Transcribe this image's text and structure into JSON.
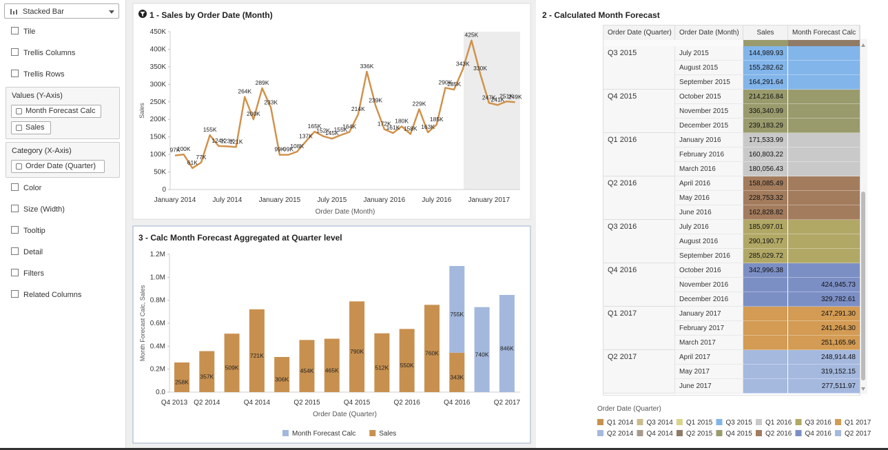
{
  "grammar_panel": {
    "viz_type": "Stacked Bar",
    "items_top": [
      "Tile",
      "Trellis Columns",
      "Trellis Rows"
    ],
    "values_section": {
      "label": "Values (Y-Axis)",
      "pills": [
        "Month Forecast Calc",
        "Sales"
      ]
    },
    "category_section": {
      "label": "Category (X-Axis)",
      "pills": [
        "Order Date (Quarter)"
      ]
    },
    "items_bottom": [
      "Color",
      "Size (Width)",
      "Tooltip",
      "Detail",
      "Filters",
      "Related Columns"
    ]
  },
  "chart_data": [
    {
      "type": "line",
      "title": "1 - Sales by Order Date (Month)",
      "x_label": "Order Date (Month)",
      "y_label": "Sales",
      "color": "#d0924c",
      "categories": [
        "January 2014",
        null,
        null,
        null,
        null,
        null,
        "July 2014",
        null,
        null,
        null,
        null,
        null,
        "January 2015",
        null,
        null,
        null,
        null,
        null,
        "July 2015",
        null,
        null,
        null,
        null,
        null,
        "January 2016",
        null,
        null,
        null,
        null,
        null,
        "July 2016",
        null,
        null,
        null,
        null,
        null,
        "January 2017",
        null,
        null,
        null
      ],
      "values": [
        97000,
        100000,
        61000,
        77000,
        155000,
        124000,
        123000,
        121000,
        264000,
        200000,
        289000,
        233000,
        99000,
        99000,
        108000,
        137000,
        165000,
        152000,
        145000,
        155000,
        164000,
        214000,
        336000,
        239000,
        172000,
        161000,
        180000,
        158000,
        229000,
        163000,
        185000,
        290000,
        285000,
        343000,
        425000,
        330000,
        247000,
        241000,
        251000,
        249000
      ],
      "value_labels": [
        "97K",
        "100K",
        "61K",
        "77K",
        "155K",
        "124K",
        "123K",
        "121K",
        "264K",
        "200K",
        "289K",
        "233K",
        "99K",
        "99K",
        "108K",
        "137K",
        "165K",
        "152K",
        "145K",
        "155K",
        "164K",
        "214K",
        "336K",
        "239K",
        "172K",
        "161K",
        "180K",
        "158K",
        "229K",
        "163K",
        "185K",
        "290K",
        "285K",
        "343K",
        "425K",
        "330K",
        "247K",
        "241K",
        "251K",
        "249K"
      ],
      "ylim": [
        0,
        450000
      ],
      "yticks": [
        0,
        {
          "value": 50000,
          "label": "50K"
        },
        {
          "value": 100000,
          "label": "100K"
        },
        {
          "value": 150000,
          "label": "150K"
        },
        {
          "value": 200000,
          "label": "200K"
        },
        {
          "value": 250000,
          "label": "250K"
        },
        {
          "value": 300000,
          "label": "300K"
        },
        {
          "value": 350000,
          "label": "350K"
        },
        {
          "value": 400000,
          "label": "400K"
        },
        {
          "value": 450000,
          "label": "450K"
        }
      ]
    },
    {
      "type": "stacked_bar",
      "title": "3 - Calc Month Forecast Aggregated at Quarter level",
      "x_label": "Order Date (Quarter)",
      "y_label": "Month Forecast Calc, Sales",
      "legend": "bottom",
      "categories": [
        "Q4 2013",
        "Q2 2014",
        null,
        "Q4 2014",
        null,
        "Q2 2015",
        null,
        "Q4 2015",
        null,
        "Q2 2016",
        null,
        "Q4 2016",
        null,
        "Q2 2017"
      ],
      "series": [
        {
          "name": "Sales",
          "color": "#c8904f",
          "values": [
            258000,
            357000,
            509000,
            721000,
            306000,
            454000,
            465000,
            790000,
            512000,
            550000,
            760000,
            343000,
            null,
            null
          ],
          "value_labels": [
            "258K",
            "357K",
            "509K",
            "721K",
            "306K",
            "454K",
            "465K",
            "790K",
            "512K",
            "550K",
            "760K",
            "343K",
            null,
            null
          ]
        },
        {
          "name": "Month Forecast Calc",
          "color": "#a3b8dc",
          "values": [
            null,
            null,
            null,
            null,
            null,
            null,
            null,
            null,
            null,
            null,
            null,
            755000,
            740000,
            846000
          ],
          "value_labels": [
            null,
            null,
            null,
            null,
            null,
            null,
            null,
            null,
            null,
            null,
            null,
            "755K",
            "740K",
            "846K"
          ]
        }
      ],
      "legend_order": [
        1,
        0
      ],
      "ylim": [
        0,
        1200000
      ],
      "yticks": [
        {
          "value": 0,
          "label": "0.0"
        },
        {
          "value": 200000,
          "label": "0.2M"
        },
        {
          "value": 400000,
          "label": "0.4M"
        },
        {
          "value": 600000,
          "label": "0.6M"
        },
        {
          "value": 800000,
          "label": "0.8M"
        },
        {
          "value": 1000000,
          "label": "1.0M"
        },
        {
          "value": 1200000,
          "label": "1.2M"
        }
      ]
    }
  ],
  "table_view": {
    "title": "2 - Calculated Month Forecast",
    "columns": [
      "Order Date (Quarter)",
      "Order Date (Month)",
      "Sales",
      "Month Forecast Calc"
    ],
    "groups": [
      {
        "quarter": "Q3 2015",
        "color": "#82b5ea",
        "rows": [
          {
            "month": "July 2015",
            "sales": "144,989.93",
            "forecast": null
          },
          {
            "month": "August 2015",
            "sales": "155,282.62",
            "forecast": null
          },
          {
            "month": "September 2015",
            "sales": "164,291.64",
            "forecast": null
          }
        ]
      },
      {
        "quarter": "Q4 2015",
        "color": "#9a9b6d",
        "rows": [
          {
            "month": "October 2015",
            "sales": "214,216.84",
            "forecast": null
          },
          {
            "month": "November 2015",
            "sales": "336,340.99",
            "forecast": null
          },
          {
            "month": "December 2015",
            "sales": "239,183.29",
            "forecast": null
          }
        ]
      },
      {
        "quarter": "Q1 2016",
        "color": "#c9c9c9",
        "rows": [
          {
            "month": "January 2016",
            "sales": "171,533.99",
            "forecast": null
          },
          {
            "month": "February 2016",
            "sales": "160,803.22",
            "forecast": null
          },
          {
            "month": "March 2016",
            "sales": "180,056.43",
            "forecast": null
          }
        ]
      },
      {
        "quarter": "Q2 2016",
        "color": "#a37c5d",
        "rows": [
          {
            "month": "April 2016",
            "sales": "158,085.49",
            "forecast": null
          },
          {
            "month": "May 2016",
            "sales": "228,753.32",
            "forecast": null
          },
          {
            "month": "June 2016",
            "sales": "162,828.82",
            "forecast": null
          }
        ]
      },
      {
        "quarter": "Q3 2016",
        "color": "#b1a866",
        "rows": [
          {
            "month": "July 2016",
            "sales": "185,097.01",
            "forecast": null
          },
          {
            "month": "August 2016",
            "sales": "290,190.77",
            "forecast": null
          },
          {
            "month": "September 2016",
            "sales": "285,029.72",
            "forecast": null
          }
        ]
      },
      {
        "quarter": "Q4 2016",
        "color": "#7c8fc5",
        "rows": [
          {
            "month": "October 2016",
            "sales": "342,996.38",
            "forecast": null
          },
          {
            "month": "November 2016",
            "sales": null,
            "forecast": "424,945.73"
          },
          {
            "month": "December 2016",
            "sales": null,
            "forecast": "329,782.61"
          }
        ]
      },
      {
        "quarter": "Q1 2017",
        "color": "#d39b53",
        "rows": [
          {
            "month": "January 2017",
            "sales": null,
            "forecast": "247,291.30"
          },
          {
            "month": "February 2017",
            "sales": null,
            "forecast": "241,264.30"
          },
          {
            "month": "March 2017",
            "sales": null,
            "forecast": "251,165.96"
          }
        ]
      },
      {
        "quarter": "Q2 2017",
        "color": "#a5b9df",
        "rows": [
          {
            "month": "April 2017",
            "sales": null,
            "forecast": "248,914.48"
          },
          {
            "month": "May 2017",
            "sales": null,
            "forecast": "319,152.15"
          },
          {
            "month": "June 2017",
            "sales": null,
            "forecast": "277,511.97"
          }
        ]
      }
    ],
    "legend": {
      "title": "Order Date (Quarter)",
      "items": [
        {
          "label": "Q1 2014",
          "color": "#c8904f"
        },
        {
          "label": "Q3 2014",
          "color": "#cbbb8c"
        },
        {
          "label": "Q1 2015",
          "color": "#dbd38c"
        },
        {
          "label": "Q3 2015",
          "color": "#82b5ea"
        },
        {
          "label": "Q1 2016",
          "color": "#c9c9c9"
        },
        {
          "label": "Q3 2016",
          "color": "#b1a866"
        },
        {
          "label": "Q1 2017",
          "color": "#d39b53"
        },
        {
          "label": "Q2 2014",
          "color": "#a5b9df"
        },
        {
          "label": "Q4 2014",
          "color": "#a99b8f"
        },
        {
          "label": "Q2 2015",
          "color": "#907b66"
        },
        {
          "label": "Q4 2015",
          "color": "#9a9b6d"
        },
        {
          "label": "Q2 2016",
          "color": "#a37c5d"
        },
        {
          "label": "Q4 2016",
          "color": "#7c8fc5"
        },
        {
          "label": "Q2 2017",
          "color": "#a5b9df"
        }
      ]
    }
  }
}
